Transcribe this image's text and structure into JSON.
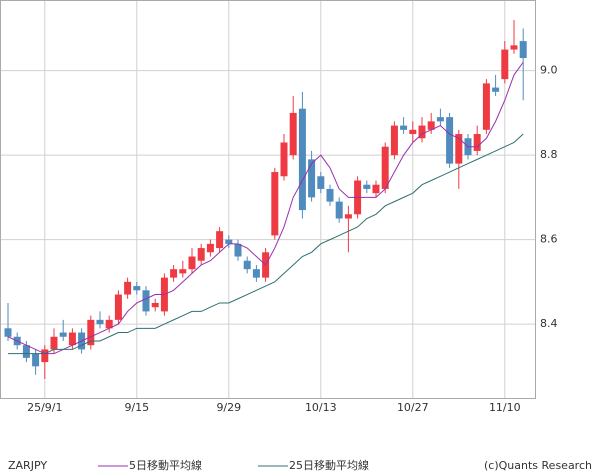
{
  "chart_data": {
    "type": "candlestick",
    "symbol": "ZARJPY",
    "credit": "(c)Quants Research",
    "categories": [
      null,
      null,
      null,
      null,
      "25/9/1",
      null,
      null,
      null,
      null,
      null,
      null,
      null,
      null,
      null,
      "9/15",
      null,
      null,
      null,
      null,
      null,
      null,
      null,
      null,
      null,
      "9/29",
      null,
      null,
      null,
      null,
      null,
      null,
      null,
      null,
      null,
      "10/13",
      null,
      null,
      null,
      null,
      null,
      null,
      null,
      null,
      null,
      "10/27",
      null,
      null,
      null,
      null,
      null,
      null,
      null,
      null,
      null,
      "11/10",
      null,
      null
    ],
    "open": [
      8.39,
      8.37,
      8.35,
      8.33,
      8.31,
      8.34,
      8.38,
      8.35,
      8.38,
      8.35,
      8.41,
      8.39,
      8.41,
      8.47,
      8.49,
      8.48,
      8.44,
      8.43,
      8.51,
      8.52,
      8.53,
      8.55,
      8.57,
      8.58,
      8.6,
      8.59,
      8.55,
      8.53,
      8.51,
      8.61,
      8.75,
      8.8,
      8.91,
      8.79,
      8.75,
      8.72,
      8.69,
      8.65,
      8.66,
      8.73,
      8.71,
      8.72,
      8.8,
      8.87,
      8.85,
      8.84,
      8.86,
      8.89,
      8.89,
      8.78,
      8.84,
      8.81,
      8.86,
      8.96,
      8.98,
      9.05,
      9.07
    ],
    "high": [
      8.45,
      8.38,
      8.36,
      8.34,
      8.35,
      8.39,
      8.41,
      8.39,
      8.39,
      8.42,
      8.43,
      8.42,
      8.48,
      8.51,
      8.5,
      8.49,
      8.46,
      8.52,
      8.54,
      8.55,
      8.58,
      8.59,
      8.6,
      8.63,
      8.61,
      8.6,
      8.56,
      8.54,
      8.58,
      8.77,
      8.85,
      8.94,
      8.95,
      8.81,
      8.76,
      8.73,
      8.7,
      8.68,
      8.75,
      8.74,
      8.74,
      8.83,
      8.88,
      8.89,
      8.88,
      8.89,
      8.9,
      8.91,
      8.9,
      8.86,
      8.85,
      8.87,
      8.98,
      8.99,
      9.07,
      9.12,
      9.1
    ],
    "low": [
      8.36,
      8.34,
      8.31,
      8.28,
      8.27,
      8.33,
      8.36,
      8.34,
      8.33,
      8.34,
      8.39,
      8.38,
      8.4,
      8.46,
      8.47,
      8.42,
      8.43,
      8.42,
      8.5,
      8.51,
      8.52,
      8.54,
      8.56,
      8.57,
      8.58,
      8.55,
      8.52,
      8.5,
      8.5,
      8.6,
      8.74,
      8.79,
      8.65,
      8.69,
      8.71,
      8.68,
      8.64,
      8.57,
      8.65,
      8.71,
      8.7,
      8.71,
      8.79,
      8.85,
      8.83,
      8.83,
      8.85,
      8.87,
      8.77,
      8.72,
      8.79,
      8.8,
      8.85,
      8.94,
      8.97,
      9.04,
      8.93
    ],
    "close": [
      8.37,
      8.35,
      8.32,
      8.3,
      8.34,
      8.37,
      8.37,
      8.38,
      8.34,
      8.41,
      8.4,
      8.41,
      8.47,
      8.5,
      8.48,
      8.43,
      8.45,
      8.51,
      8.53,
      8.53,
      8.56,
      8.58,
      8.59,
      8.62,
      8.59,
      8.56,
      8.53,
      8.51,
      8.57,
      8.76,
      8.83,
      8.9,
      8.67,
      8.7,
      8.72,
      8.69,
      8.65,
      8.66,
      8.74,
      8.72,
      8.73,
      8.82,
      8.87,
      8.86,
      8.86,
      8.87,
      8.88,
      8.88,
      8.78,
      8.85,
      8.8,
      8.85,
      8.97,
      8.95,
      9.05,
      9.06,
      9.03
    ],
    "up_color": "#ee3b43",
    "down_color": "#4f8bbd",
    "series": [
      {
        "name": "5日移動平均線",
        "color": "#9a2fae",
        "values": [
          8.37,
          8.36,
          8.35,
          8.34,
          8.33,
          8.33,
          8.34,
          8.35,
          8.36,
          8.37,
          8.38,
          8.39,
          8.4,
          8.43,
          8.45,
          8.46,
          8.47,
          8.47,
          8.48,
          8.5,
          8.52,
          8.54,
          8.55,
          8.57,
          8.59,
          8.59,
          8.58,
          8.56,
          8.54,
          8.58,
          8.63,
          8.7,
          8.74,
          8.78,
          8.8,
          8.77,
          8.72,
          8.7,
          8.7,
          8.7,
          8.7,
          8.72,
          8.76,
          8.8,
          8.83,
          8.85,
          8.86,
          8.87,
          8.85,
          8.84,
          8.82,
          8.82,
          8.84,
          8.88,
          8.93,
          8.99,
          9.02
        ]
      },
      {
        "name": "25日移動平均線",
        "color": "#2e7070",
        "values": [
          8.33,
          8.33,
          8.33,
          8.33,
          8.33,
          8.34,
          8.34,
          8.34,
          8.35,
          8.36,
          8.36,
          8.37,
          8.38,
          8.38,
          8.39,
          8.39,
          8.39,
          8.4,
          8.41,
          8.42,
          8.43,
          8.43,
          8.44,
          8.45,
          8.45,
          8.46,
          8.47,
          8.48,
          8.49,
          8.5,
          8.52,
          8.54,
          8.56,
          8.57,
          8.59,
          8.6,
          8.61,
          8.62,
          8.63,
          8.65,
          8.66,
          8.68,
          8.69,
          8.7,
          8.71,
          8.73,
          8.74,
          8.75,
          8.76,
          8.77,
          8.78,
          8.79,
          8.8,
          8.81,
          8.82,
          8.83,
          8.85
        ]
      }
    ],
    "ylim": [
      8.225,
      9.165
    ],
    "yticks": [
      8.4,
      8.6,
      8.8,
      {
        "value": 9,
        "label": "9.0"
      }
    ],
    "grid": true
  }
}
